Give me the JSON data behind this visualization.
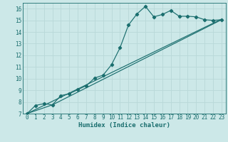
{
  "bg_color": "#cce8e8",
  "grid_color": "#b8d8d8",
  "line_color": "#1a6e6e",
  "xlabel": "Humidex (Indice chaleur)",
  "ylim": [
    7,
    16.5
  ],
  "xlim": [
    -0.5,
    23.5
  ],
  "yticks": [
    7,
    8,
    9,
    10,
    11,
    12,
    13,
    14,
    15,
    16
  ],
  "xticks": [
    0,
    1,
    2,
    3,
    4,
    5,
    6,
    7,
    8,
    9,
    10,
    11,
    12,
    13,
    14,
    15,
    16,
    17,
    18,
    19,
    20,
    21,
    22,
    23
  ],
  "curve1_x": [
    0,
    1,
    2,
    3,
    4,
    5,
    6,
    7,
    8,
    9,
    10,
    11,
    12,
    13,
    14,
    15,
    16,
    17,
    18,
    19,
    20,
    21,
    22,
    23
  ],
  "curve1_y": [
    7.0,
    7.7,
    7.85,
    7.75,
    8.55,
    8.7,
    9.05,
    9.4,
    10.05,
    10.3,
    11.2,
    12.65,
    14.6,
    15.55,
    16.2,
    15.3,
    15.5,
    15.85,
    15.35,
    15.35,
    15.3,
    15.05,
    15.0,
    15.05
  ],
  "curve2_x": [
    0,
    23
  ],
  "curve2_y": [
    7.0,
    15.1
  ],
  "curve3_x": [
    0,
    3,
    23
  ],
  "curve3_y": [
    7.0,
    7.75,
    15.05
  ],
  "xlabel_fontsize": 6.5,
  "tick_fontsize": 5.5,
  "linewidth": 0.85,
  "markersize": 2.2
}
